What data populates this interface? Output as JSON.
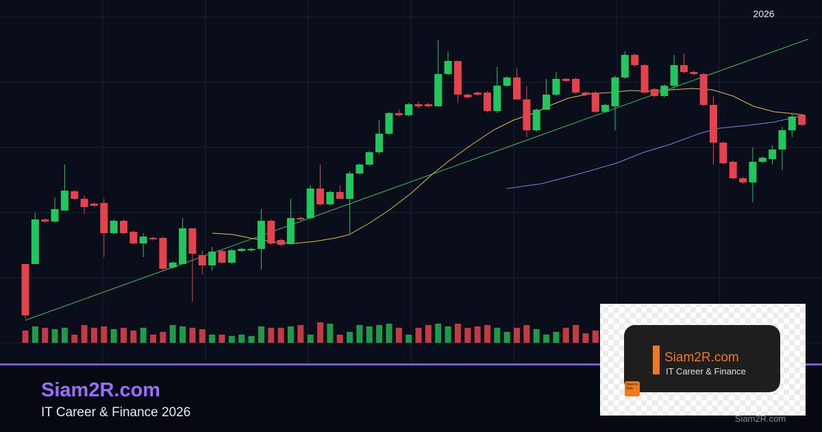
{
  "header": {
    "year": "2026"
  },
  "brand": {
    "name": "Siam2R.com",
    "tagline": "IT Career & Finance 2026"
  },
  "logo_card": {
    "title": "Siam2R.com",
    "subtitle": "IT Career & Finance",
    "icon_text": "Siam to Rich"
  },
  "watermark": "Siam2R.com"
}
